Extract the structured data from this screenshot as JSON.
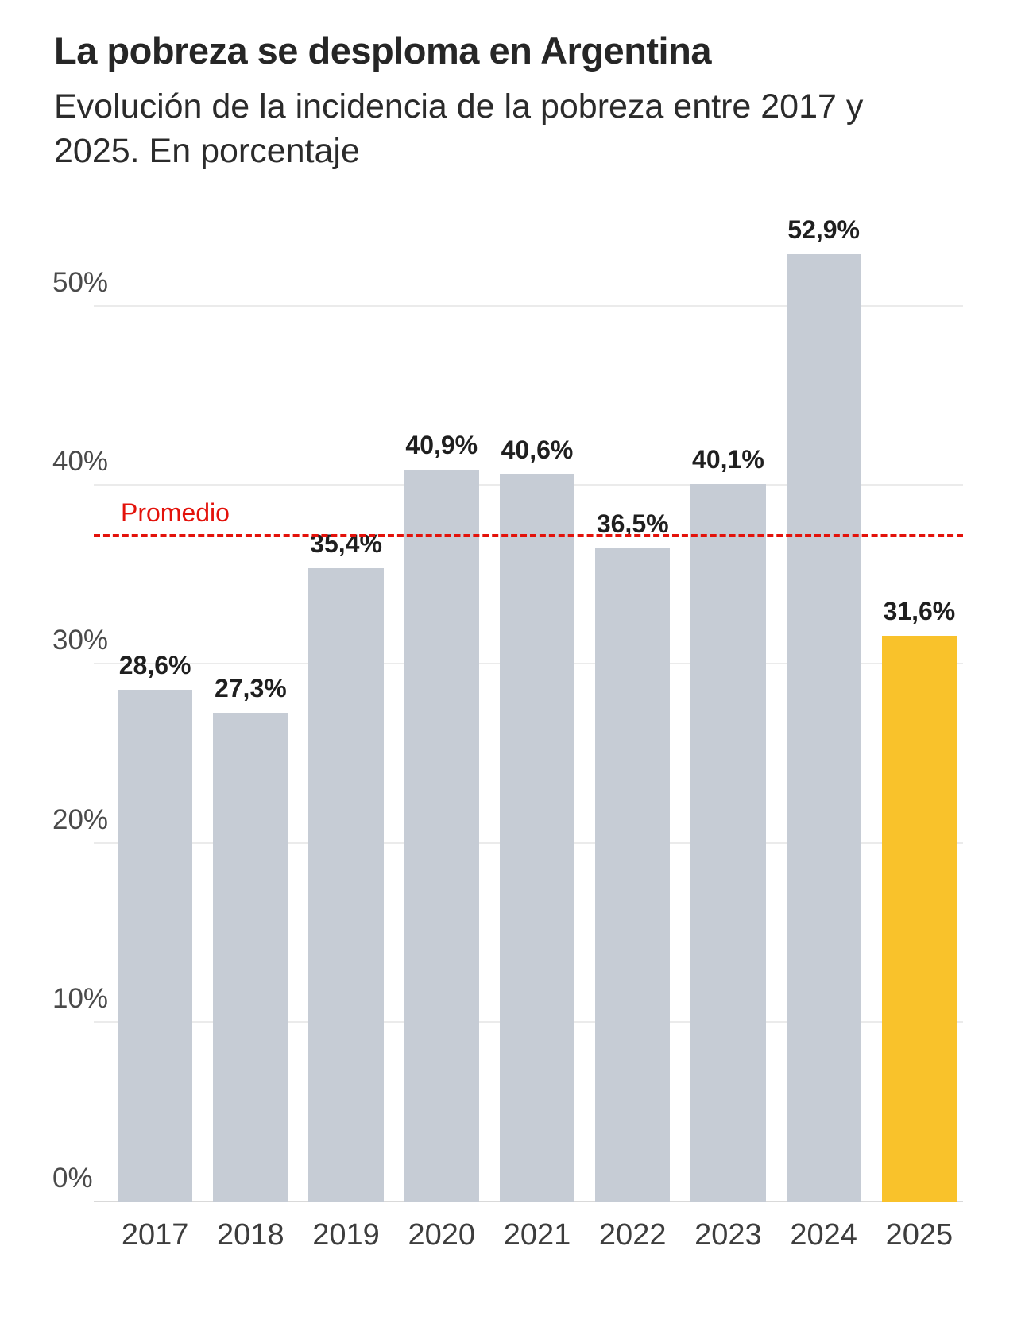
{
  "header": {
    "title": "La pobreza se desploma en Argentina",
    "subtitle": "Evolución de la incidencia de la pobreza entre 2017 y 2025. En porcentaje"
  },
  "chart_data": {
    "type": "bar",
    "title": "La pobreza se desploma en Argentina",
    "subtitle": "Evolución de la incidencia de la pobreza entre 2017 y 2025. En porcentaje",
    "categories": [
      "2017",
      "2018",
      "2019",
      "2020",
      "2021",
      "2022",
      "2023",
      "2024",
      "2025"
    ],
    "values": [
      28.6,
      27.3,
      35.4,
      40.9,
      40.6,
      36.5,
      40.1,
      52.9,
      31.6
    ],
    "value_labels": [
      "28,6%",
      "27,3%",
      "35,4%",
      "40,9%",
      "40,6%",
      "36,5%",
      "40,1%",
      "52,9%",
      "31,6%"
    ],
    "xlabel": "",
    "ylabel": "",
    "ylim": [
      0,
      55
    ],
    "yticks": [
      0,
      10,
      20,
      30,
      40,
      50
    ],
    "ytick_labels": [
      "0%",
      "10%",
      "20%",
      "30%",
      "40%",
      "50%"
    ],
    "grid": "horizontal",
    "legend": "none",
    "bar_color": "#c6ccd5",
    "highlight_color": "#f9c22b",
    "highlight_index": 8,
    "reference_line": {
      "label": "Promedio",
      "value": 37.1,
      "color": "#e3120b",
      "style": "dashed"
    }
  }
}
